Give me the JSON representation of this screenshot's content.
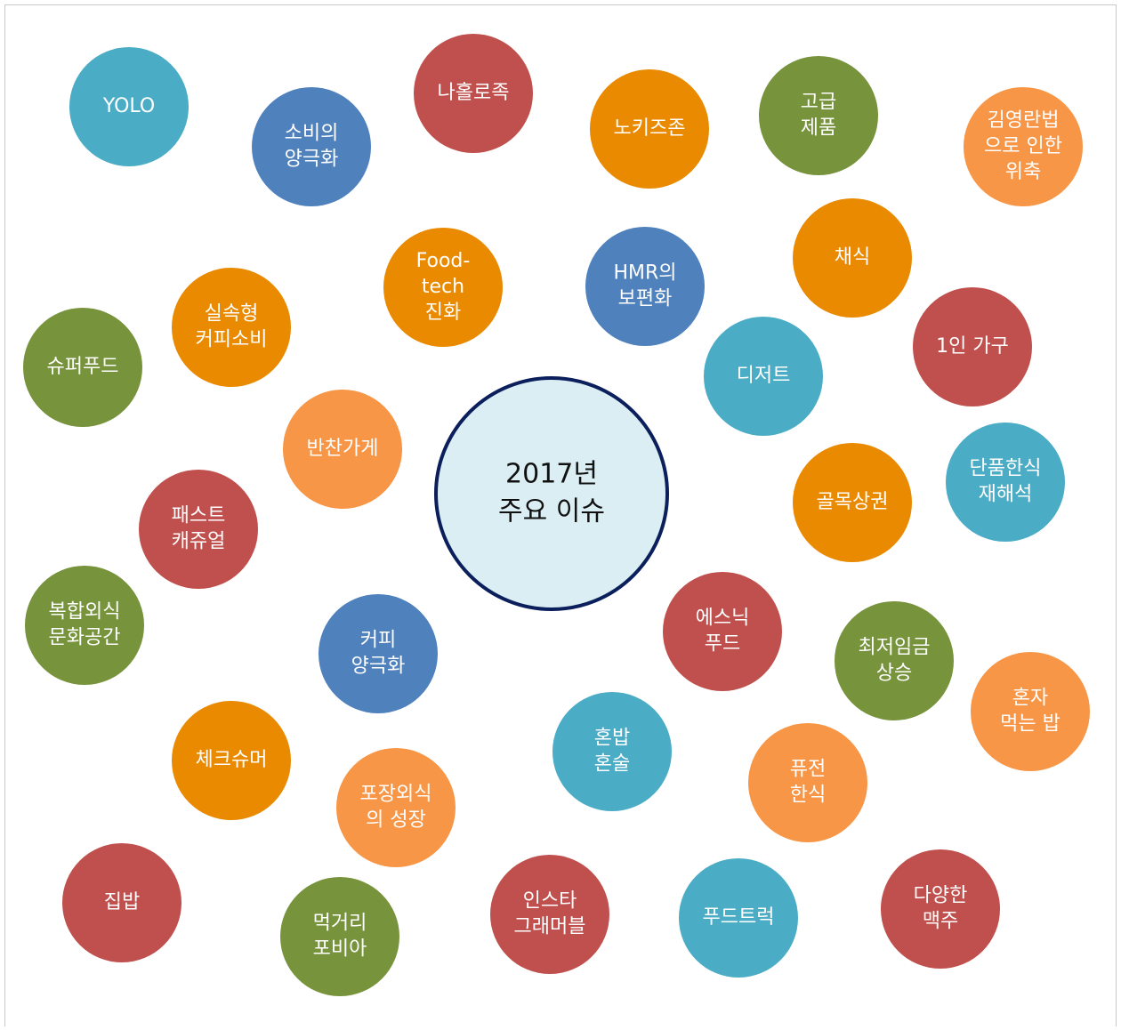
{
  "center": {
    "lines": [
      "2017년",
      "주요 이슈"
    ]
  },
  "nodes": [
    {
      "lines": [
        "YOLO"
      ],
      "color": "#4bacc6"
    },
    {
      "lines": [
        "소비의",
        "양극화"
      ],
      "color": "#4f81bd"
    },
    {
      "lines": [
        "나홀로족"
      ],
      "color": "#c0504d"
    },
    {
      "lines": [
        "노키즈존"
      ],
      "color": "#e98a00"
    },
    {
      "lines": [
        "고급",
        "제품"
      ],
      "color": "#77933c"
    },
    {
      "lines": [
        "김영란법",
        "으로 인한",
        "위축"
      ],
      "color": "#f79646"
    },
    {
      "lines": [
        "Food-",
        "tech",
        "진화"
      ],
      "color": "#e98a00"
    },
    {
      "lines": [
        "HMR의",
        "보편화"
      ],
      "color": "#4f81bd"
    },
    {
      "lines": [
        "채식"
      ],
      "color": "#e98a00"
    },
    {
      "lines": [
        "실속형",
        "커피소비"
      ],
      "color": "#e98a00"
    },
    {
      "lines": [
        "슈퍼푸드"
      ],
      "color": "#77933c"
    },
    {
      "lines": [
        "1인 가구"
      ],
      "color": "#c0504d"
    },
    {
      "lines": [
        "디저트"
      ],
      "color": "#4bacc6"
    },
    {
      "lines": [
        "반찬가게"
      ],
      "color": "#f79646"
    },
    {
      "lines": [
        "단품한식",
        "재해석"
      ],
      "color": "#4bacc6"
    },
    {
      "lines": [
        "골목상권"
      ],
      "color": "#e98a00"
    },
    {
      "lines": [
        "패스트",
        "캐쥬얼"
      ],
      "color": "#c0504d"
    },
    {
      "lines": [
        "복합외식",
        "문화공간"
      ],
      "color": "#77933c"
    },
    {
      "lines": [
        "에스닉",
        "푸드"
      ],
      "color": "#c0504d"
    },
    {
      "lines": [
        "커피",
        "양극화"
      ],
      "color": "#4f81bd"
    },
    {
      "lines": [
        "최저임금",
        "상승"
      ],
      "color": "#77933c"
    },
    {
      "lines": [
        "혼자",
        "먹는 밥"
      ],
      "color": "#f79646"
    },
    {
      "lines": [
        "체크슈머"
      ],
      "color": "#e98a00"
    },
    {
      "lines": [
        "혼밥",
        "혼술"
      ],
      "color": "#4bacc6"
    },
    {
      "lines": [
        "포장외식",
        "의 성장"
      ],
      "color": "#f79646"
    },
    {
      "lines": [
        "퓨전",
        "한식"
      ],
      "color": "#f79646"
    },
    {
      "lines": [
        "집밥"
      ],
      "color": "#c0504d"
    },
    {
      "lines": [
        "먹거리",
        "포비아"
      ],
      "color": "#77933c"
    },
    {
      "lines": [
        "인스타",
        "그래머블"
      ],
      "color": "#c0504d"
    },
    {
      "lines": [
        "푸드트럭"
      ],
      "color": "#4bacc6"
    },
    {
      "lines": [
        "다양한",
        "맥주"
      ],
      "color": "#c0504d"
    }
  ]
}
